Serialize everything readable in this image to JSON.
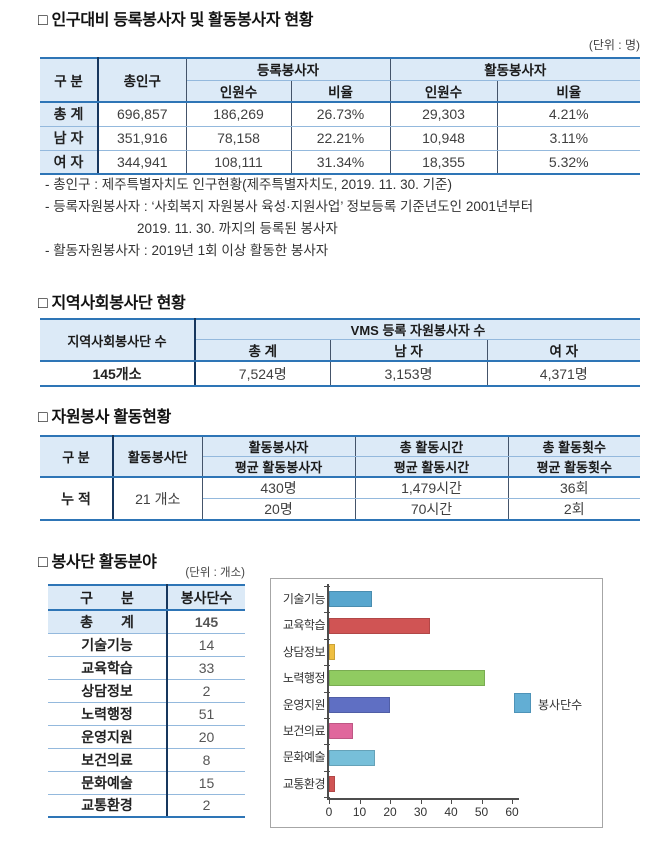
{
  "colors": {
    "header_fill": "#DCEAF7",
    "border_thick": "#2E75B6",
    "border_thin": "#94B9DD",
    "border_dark": "#17375E",
    "axis": "#4D4D4D"
  },
  "section1": {
    "title": "□ 인구대비 등록봉사자 및 활동봉사자 현황",
    "unit": "(단위 : 명)",
    "table": {
      "col_group": "구 분",
      "col_population": "총인구",
      "group_registered": "등록봉사자",
      "group_active": "활동봉사자",
      "col_count": "인원수",
      "col_ratio": "비율",
      "rows": [
        {
          "label": "총 계",
          "population": "696,857",
          "reg_count": "186,269",
          "reg_ratio": "26.73%",
          "act_count": "29,303",
          "act_ratio": "4.21%"
        },
        {
          "label": "남 자",
          "population": "351,916",
          "reg_count": "78,158",
          "reg_ratio": "22.21%",
          "act_count": "10,948",
          "act_ratio": "3.11%"
        },
        {
          "label": "여 자",
          "population": "344,941",
          "reg_count": "108,111",
          "reg_ratio": "31.34%",
          "act_count": "18,355",
          "act_ratio": "5.32%"
        }
      ]
    },
    "notes": [
      "- 총인구 : 제주특별자치도 인구현황(제주특별자치도, 2019. 11. 30. 기준)",
      "- 등록자원봉사자 : ‘사회복지 자원봉사 육성·지원사업’ 정보등록 기준년도인 2001년부터",
      "2019. 11. 30. 까지의 등록된 봉사자",
      "- 활동자원봉사자 : 2019년 1회 이상 활동한 봉사자"
    ]
  },
  "section2": {
    "title": "□ 지역사회봉사단 현황",
    "table": {
      "col_teams": "지역사회봉사단 수",
      "group_vms": "VMS 등록 자원봉사자 수",
      "col_total": "총 계",
      "col_male": "남 자",
      "col_female": "여 자",
      "row": {
        "teams": "145개소",
        "total": "7,524명",
        "male": "3,153명",
        "female": "4,371명"
      }
    }
  },
  "section3": {
    "title": "□ 자원봉사 활동현황",
    "table": {
      "col_group": "구 분",
      "col_teams": "활동봉사단",
      "h_volunteers": "활동봉사자",
      "h_hours": "총 활동시간",
      "h_times": "총 활동횟수",
      "h_avg_volunteers": "평균 활동봉사자",
      "h_avg_hours": "평균 활동시간",
      "h_avg_times": "평균 활동횟수",
      "row_label": "누 적",
      "row_teams": "21 개소",
      "rows": [
        {
          "volunteers": "430명",
          "hours": "1,479시간",
          "times": "36회"
        },
        {
          "volunteers": "20명",
          "hours": "70시간",
          "times": "2회"
        }
      ]
    }
  },
  "section4": {
    "title": "□ 봉사단 활동분야",
    "unit": "(단위 : 개소)",
    "table": {
      "col_group": "구　　분",
      "col_count": "봉사단수",
      "total_label": "총　　계",
      "total_value": "145",
      "rows": [
        {
          "label": "기술기능",
          "value": "14"
        },
        {
          "label": "교육학습",
          "value": "33"
        },
        {
          "label": "상담정보",
          "value": "2"
        },
        {
          "label": "노력행정",
          "value": "51"
        },
        {
          "label": "운영지원",
          "value": "20"
        },
        {
          "label": "보건의료",
          "value": "8"
        },
        {
          "label": "문화예술",
          "value": "15"
        },
        {
          "label": "교통환경",
          "value": "2"
        }
      ]
    }
  },
  "chart_data": {
    "type": "bar",
    "orientation": "horizontal",
    "title": "",
    "xlabel": "",
    "ylabel": "",
    "categories": [
      "기술기능",
      "교육학습",
      "상담정보",
      "노력행정",
      "운영지원",
      "보건의료",
      "문화예술",
      "교통환경"
    ],
    "values": [
      14,
      33,
      2,
      51,
      20,
      8,
      15,
      2
    ],
    "bar_colors": [
      "#58A6CE",
      "#D05454",
      "#EFBF41",
      "#90CB61",
      "#5F6FC3",
      "#E0679C",
      "#77BFD9",
      "#D05454"
    ],
    "xlim": [
      0,
      60
    ],
    "xticks": [
      0,
      10,
      20,
      30,
      40,
      50,
      60
    ],
    "grid": false,
    "legend": "봉사단수",
    "legend_color": "#62AED4",
    "legend_position": "right"
  }
}
